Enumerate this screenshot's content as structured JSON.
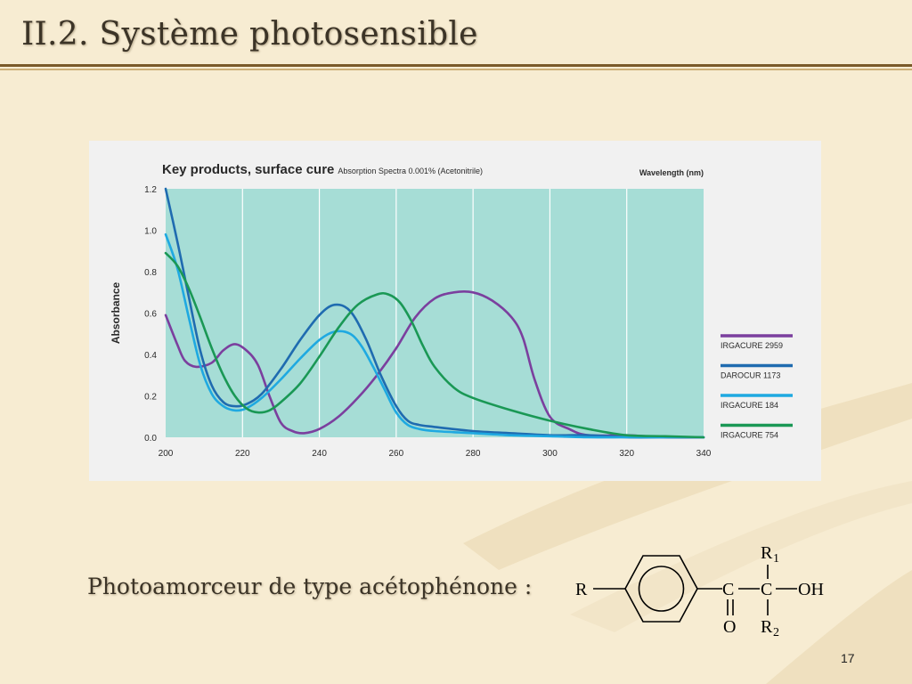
{
  "slide": {
    "title": "II.2. Système photosensible",
    "caption": "Photoamorceur de type acétophénone :",
    "page_number": "17",
    "colors": {
      "background": "#f7ecd2",
      "title": "#3c3427",
      "rule": "#7a5a2a",
      "swoosh": "#efe0bf"
    }
  },
  "chart_data": {
    "type": "line",
    "title": "Key products, surface cure",
    "subtitle": "Absorption Spectra 0.001% (Acetonitrile)",
    "xlabel": "Wavelength (nm)",
    "ylabel": "Absorbance",
    "xlim": [
      200,
      340
    ],
    "ylim": [
      0,
      1.2
    ],
    "xticks": [
      "200",
      "220",
      "240",
      "260",
      "280",
      "300",
      "320",
      "340"
    ],
    "yticks": [
      "0.0",
      "0.2",
      "0.4",
      "0.6",
      "0.8",
      "1.0",
      "1.2"
    ],
    "grid": "vertical",
    "plot_background": "#a6ddd6",
    "legend_position": "right",
    "series": [
      {
        "name": "IRGACURE 2959",
        "color": "#7b3f9e",
        "x": [
          200,
          203,
          205,
          208,
          212,
          215,
          218,
          221,
          224,
          227,
          230,
          233,
          236,
          240,
          245,
          250,
          255,
          260,
          265,
          270,
          275,
          280,
          285,
          290,
          293,
          296,
          300,
          305,
          310,
          320,
          330,
          340
        ],
        "y": [
          0.59,
          0.45,
          0.37,
          0.34,
          0.36,
          0.42,
          0.45,
          0.42,
          0.35,
          0.2,
          0.07,
          0.03,
          0.02,
          0.04,
          0.1,
          0.19,
          0.3,
          0.43,
          0.58,
          0.67,
          0.7,
          0.7,
          0.66,
          0.58,
          0.48,
          0.28,
          0.1,
          0.04,
          0.01,
          0.01,
          0.0,
          0.0
        ]
      },
      {
        "name": "DAROCUR 1173",
        "color": "#1f6bb0",
        "x": [
          200,
          203,
          206,
          209,
          212,
          215,
          218,
          221,
          225,
          230,
          235,
          240,
          244,
          248,
          252,
          256,
          260,
          263,
          266,
          270,
          280,
          290,
          300,
          310,
          320,
          330,
          340
        ],
        "y": [
          1.2,
          0.95,
          0.68,
          0.42,
          0.25,
          0.17,
          0.15,
          0.16,
          0.21,
          0.33,
          0.47,
          0.59,
          0.64,
          0.61,
          0.48,
          0.3,
          0.15,
          0.08,
          0.06,
          0.05,
          0.03,
          0.02,
          0.01,
          0.01,
          0.0,
          0.0,
          0.0
        ]
      },
      {
        "name": "IRGACURE 184",
        "color": "#1fa9e1",
        "x": [
          200,
          203,
          206,
          209,
          212,
          215,
          218,
          221,
          225,
          230,
          235,
          240,
          244,
          248,
          251,
          254,
          257,
          260,
          263,
          266,
          270,
          280,
          290,
          300,
          310,
          320,
          330,
          340
        ],
        "y": [
          0.98,
          0.82,
          0.58,
          0.35,
          0.21,
          0.15,
          0.13,
          0.14,
          0.19,
          0.28,
          0.38,
          0.47,
          0.51,
          0.5,
          0.44,
          0.34,
          0.23,
          0.12,
          0.06,
          0.04,
          0.03,
          0.02,
          0.01,
          0.005,
          0.0,
          0.0,
          0.0,
          0.0
        ]
      },
      {
        "name": "IRGACURE 754",
        "color": "#1a9855",
        "x": [
          200,
          203,
          206,
          209,
          212,
          215,
          218,
          221,
          224,
          227,
          230,
          235,
          240,
          245,
          250,
          255,
          258,
          261,
          264,
          267,
          270,
          275,
          280,
          290,
          300,
          310,
          320,
          330,
          340
        ],
        "y": [
          0.89,
          0.83,
          0.72,
          0.58,
          0.43,
          0.3,
          0.2,
          0.14,
          0.12,
          0.13,
          0.17,
          0.26,
          0.39,
          0.53,
          0.64,
          0.69,
          0.69,
          0.65,
          0.56,
          0.44,
          0.34,
          0.24,
          0.19,
          0.13,
          0.08,
          0.04,
          0.01,
          0.005,
          0.0
        ]
      }
    ]
  },
  "structure": {
    "labels": [
      "R",
      "C",
      "C",
      "OH",
      "O",
      "R",
      "R"
    ],
    "subscripts": [
      "1",
      "2"
    ]
  }
}
